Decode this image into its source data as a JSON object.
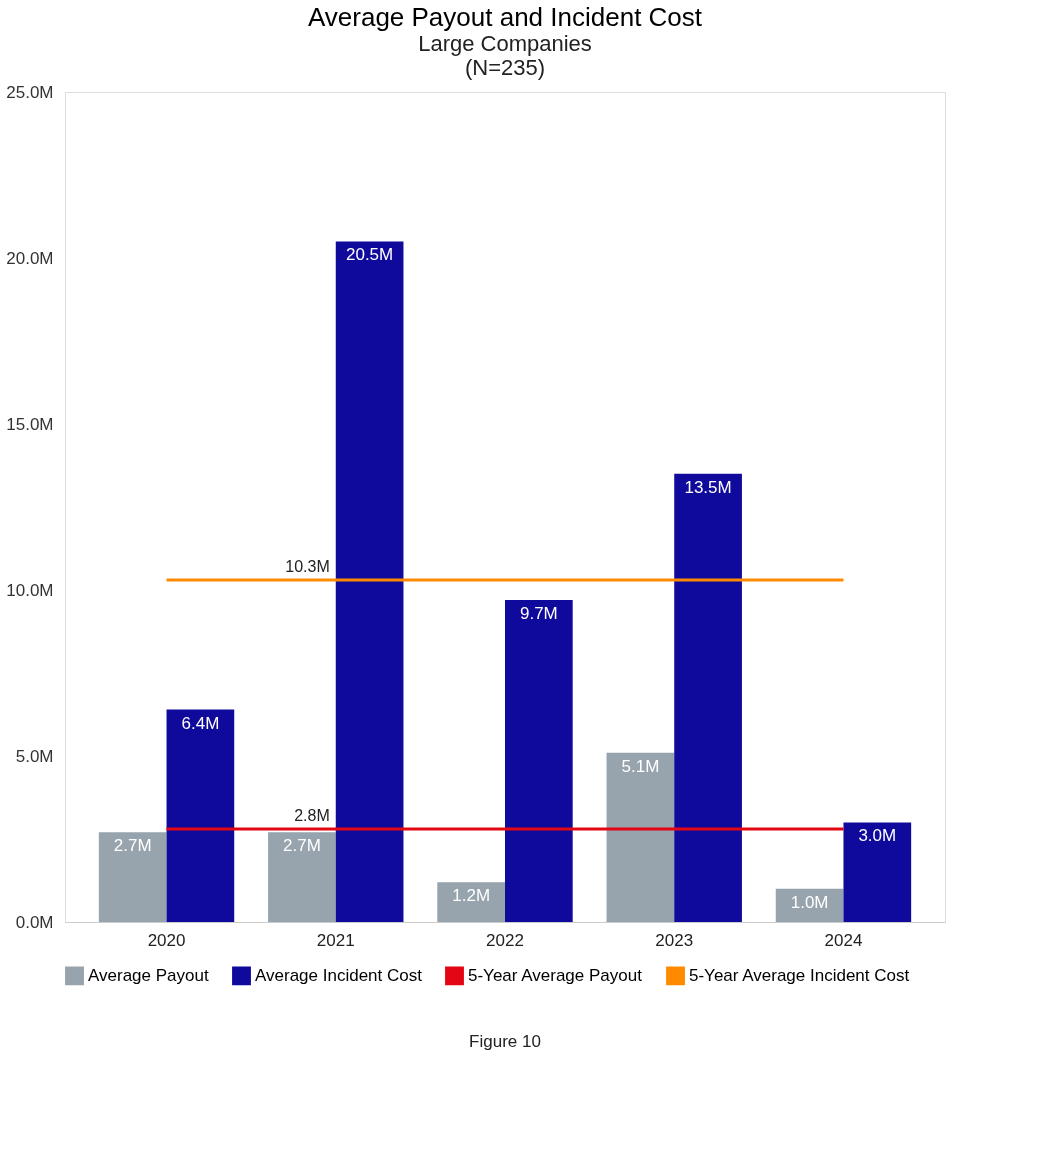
{
  "chart_data": {
    "type": "bar",
    "title": "Average Payout and Incident Cost",
    "subtitle": "Large Companies",
    "categories": [
      "2020",
      "2021",
      "2022",
      "2023",
      "2024"
    ],
    "series": [
      {
        "name": "Average Payout",
        "color": "#97a3ad",
        "values": [
          2.7,
          2.7,
          1.2,
          5.1,
          1.0
        ],
        "value_labels": [
          "2.7M",
          "2.7M",
          "1.2M",
          "5.1M",
          "1.0M"
        ]
      },
      {
        "name": "Average Incident Cost",
        "color": "#0f0a9c",
        "values": [
          6.4,
          20.5,
          9.7,
          13.5,
          3.0
        ],
        "value_labels": [
          "6.4M",
          "20.5M",
          "9.7M",
          "13.5M",
          "3.0M"
        ]
      },
      {
        "name": "5-Year Average Payout",
        "type": "line",
        "color": "#e30613",
        "values": [
          2.8,
          2.8,
          2.8,
          2.8,
          2.8
        ]
      },
      {
        "name": "5-Year Average Incident Cost",
        "type": "line",
        "color": "#ff8a00",
        "values": [
          10.3,
          10.3,
          10.3,
          10.3,
          10.3
        ]
      }
    ],
    "ylim": [
      0,
      25
    ],
    "yticks": [
      {
        "value": 0,
        "label": "0.0M"
      },
      {
        "value": 5,
        "label": "5.0M"
      },
      {
        "value": 10,
        "label": "10.0M"
      },
      {
        "value": 15,
        "label": "15.0M"
      },
      {
        "value": 20,
        "label": "20.0M"
      },
      {
        "value": 25,
        "label": "25.0M"
      }
    ],
    "annotations": [
      "(N=235)",
      {
        "text": "10.3M",
        "x": "2021",
        "y": 10.3
      },
      {
        "text": "2.8M",
        "x": "2021",
        "y": 2.8
      },
      "Figure 10"
    ],
    "grid": false,
    "legend": "bottom"
  }
}
